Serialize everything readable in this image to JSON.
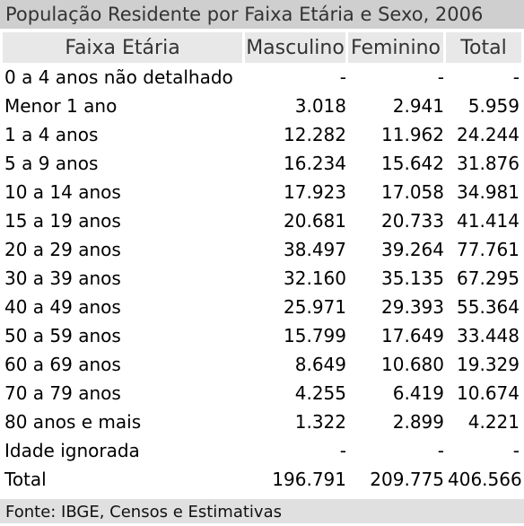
{
  "title": "População Residente por Faixa Etária e Sexo, 2006",
  "columns": [
    "Faixa Etária",
    "Masculino",
    "Feminino",
    "Total"
  ],
  "rows": [
    {
      "label": "0 a 4 anos não detalhado",
      "masculino": "-",
      "feminino": "-",
      "total": "-"
    },
    {
      "label": "Menor 1 ano",
      "masculino": "3.018",
      "feminino": "2.941",
      "total": "5.959"
    },
    {
      "label": "1 a 4 anos",
      "masculino": "12.282",
      "feminino": "11.962",
      "total": "24.244"
    },
    {
      "label": "5 a 9 anos",
      "masculino": "16.234",
      "feminino": "15.642",
      "total": "31.876"
    },
    {
      "label": "10 a 14 anos",
      "masculino": "17.923",
      "feminino": "17.058",
      "total": "34.981"
    },
    {
      "label": "15 a 19 anos",
      "masculino": "20.681",
      "feminino": "20.733",
      "total": "41.414"
    },
    {
      "label": "20 a 29 anos",
      "masculino": "38.497",
      "feminino": "39.264",
      "total": "77.761"
    },
    {
      "label": "30 a 39 anos",
      "masculino": "32.160",
      "feminino": "35.135",
      "total": "67.295"
    },
    {
      "label": "40 a 49 anos",
      "masculino": "25.971",
      "feminino": "29.393",
      "total": "55.364"
    },
    {
      "label": "50 a 59 anos",
      "masculino": "15.799",
      "feminino": "17.649",
      "total": "33.448"
    },
    {
      "label": "60 a 69 anos",
      "masculino": "8.649",
      "feminino": "10.680",
      "total": "19.329"
    },
    {
      "label": "70 a 79 anos",
      "masculino": "4.255",
      "feminino": "6.419",
      "total": "10.674"
    },
    {
      "label": "80 anos e mais",
      "masculino": "1.322",
      "feminino": "2.899",
      "total": "4.221"
    },
    {
      "label": "Idade ignorada",
      "masculino": "-",
      "feminino": "-",
      "total": "-"
    },
    {
      "label": "Total",
      "masculino": "196.791",
      "feminino": "209.775",
      "total": "406.566"
    }
  ],
  "footer": "Fonte: IBGE, Censos e Estimativas"
}
